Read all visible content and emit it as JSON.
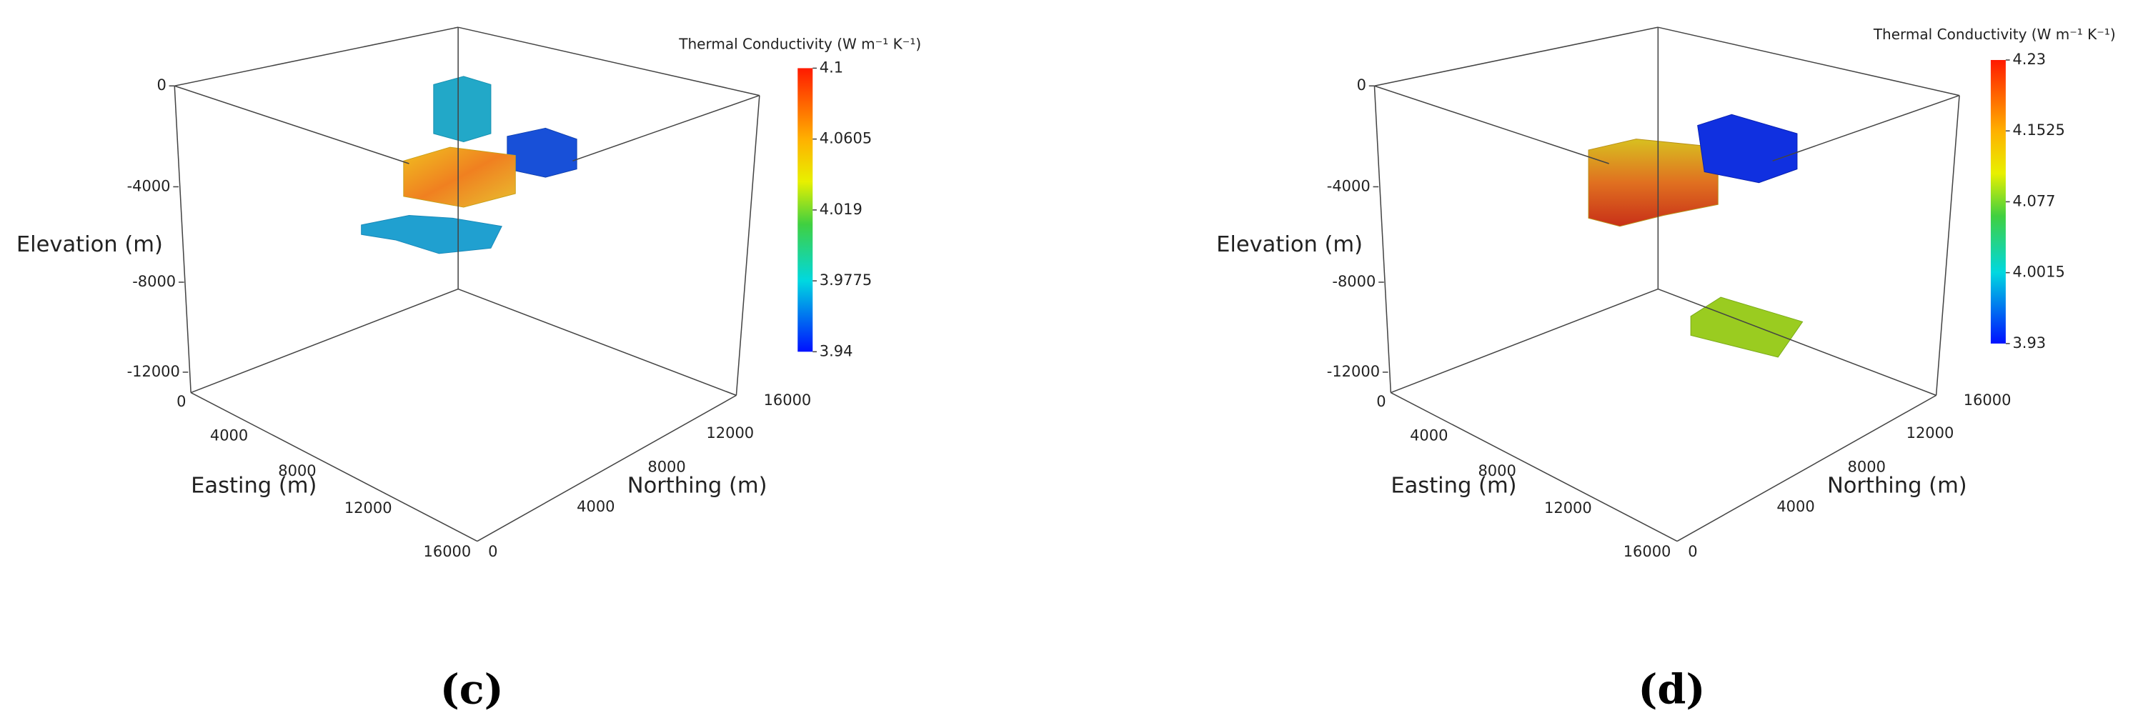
{
  "panels": [
    {
      "label": "(c)",
      "elevation": {
        "title": "Elevation (m)",
        "ticks": [
          "0",
          "-4000",
          "-8000",
          "-12000"
        ]
      },
      "easting": {
        "title": "Easting (m)",
        "ticks": [
          "0",
          "4000",
          "8000",
          "12000",
          "16000"
        ]
      },
      "northing": {
        "title": "Northing (m)",
        "ticks": [
          "0",
          "4000",
          "8000",
          "12000",
          "16000"
        ]
      },
      "colorbar": {
        "title": "Thermal Conductivity (W m⁻¹ K⁻¹)",
        "ticks": [
          "4.1",
          "4.0605",
          "4.019",
          "3.9775",
          "3.94"
        ]
      }
    },
    {
      "label": "(d)",
      "elevation": {
        "title": "Elevation (m)",
        "ticks": [
          "0",
          "-4000",
          "-8000",
          "-12000"
        ]
      },
      "easting": {
        "title": "Easting (m)",
        "ticks": [
          "0",
          "4000",
          "8000",
          "12000",
          "16000"
        ]
      },
      "northing": {
        "title": "Northing (m)",
        "ticks": [
          "0",
          "4000",
          "8000",
          "12000",
          "16000"
        ]
      },
      "colorbar": {
        "title": "Thermal Conductivity (W m⁻¹ K⁻¹)",
        "ticks": [
          "4.23",
          "4.1525",
          "4.077",
          "4.0015",
          "3.93"
        ]
      }
    }
  ]
}
